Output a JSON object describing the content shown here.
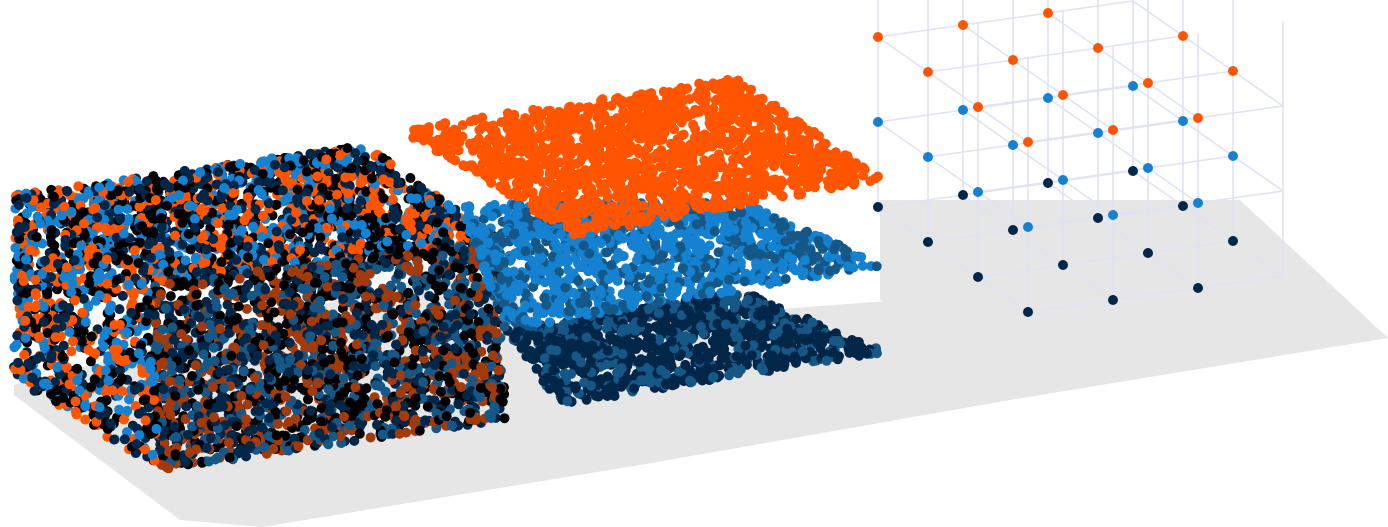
{
  "figure": {
    "panels": [
      {
        "id": "mixed",
        "description_free": true
      },
      {
        "id": "layered",
        "description_free": true
      },
      {
        "id": "lattice",
        "description_free": true
      }
    ],
    "colors": {
      "orange": "#ff5500",
      "blue": "#1582d1",
      "navy": "#022648",
      "black": "#000000",
      "dark_orange": "#a33a0c",
      "dark_blue": "#155887",
      "shadow": "#e6e6e6",
      "grid": "#dfe3f3"
    },
    "lattice": {
      "nx": 4,
      "ny": 4,
      "nz": 4,
      "layer_colors": [
        "navy",
        "blue",
        "orange"
      ]
    }
  }
}
